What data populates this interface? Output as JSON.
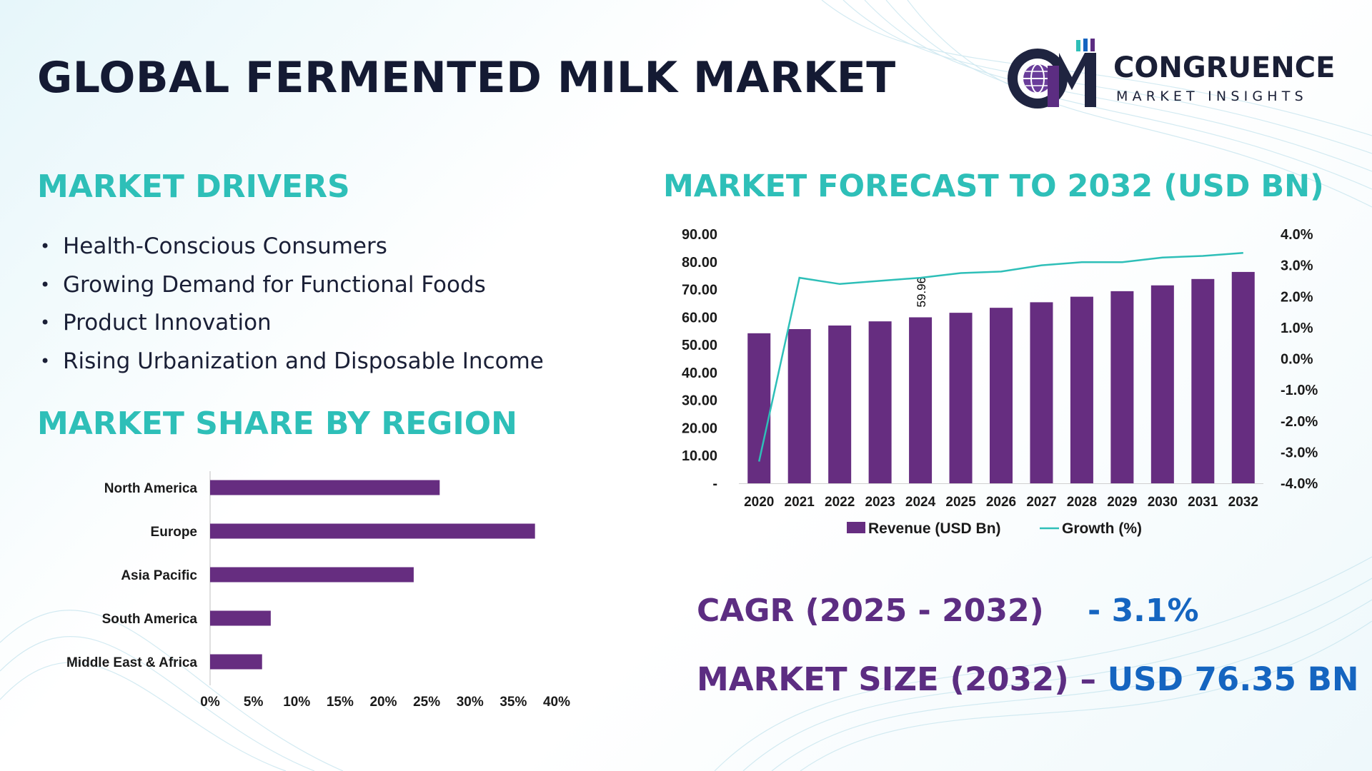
{
  "title": "GLOBAL FERMENTED MILK MARKET",
  "logo": {
    "name": "CONGRUENCE",
    "tagline": "MARKET INSIGHTS",
    "icon": "cm-globe-chart-logo"
  },
  "colors": {
    "bar": "#662d80",
    "line": "#2ebfb8",
    "heading": "#2ebfb8",
    "title": "#141a33",
    "stat_label": "#5c2d82",
    "stat_value": "#1565c0"
  },
  "drivers": {
    "heading": "MARKET DRIVERS",
    "items": [
      "Health-Conscious Consumers",
      "Growing Demand for Functional Foods",
      "Product Innovation",
      "Rising Urbanization and Disposable Income"
    ]
  },
  "region": {
    "heading": "MARKET SHARE BY REGION"
  },
  "forecast": {
    "heading": "MARKET FORECAST TO 2032 (USD BN)"
  },
  "stats": {
    "cagr_label": "CAGR (2025 - 2032)",
    "cagr_value": "- 3.1%",
    "size_label": "MARKET SIZE (2032) –",
    "size_value": "USD 76.35 BN"
  },
  "chart_data": [
    {
      "type": "bar",
      "orientation": "horizontal",
      "categories": [
        "North America",
        "Europe",
        "Asia Pacific",
        "South America",
        "Middle East & Africa"
      ],
      "values": [
        26.5,
        37.5,
        23.5,
        7.0,
        6.0
      ],
      "xlim": [
        0,
        40
      ],
      "ticks": [
        0,
        5,
        10,
        15,
        20,
        25,
        30,
        35,
        40
      ],
      "tick_labels": [
        "0%",
        "5%",
        "10%",
        "15%",
        "20%",
        "25%",
        "30%",
        "35%",
        "40%"
      ],
      "grid": false
    },
    {
      "type": "bar",
      "categories": [
        "2020",
        "2021",
        "2022",
        "2023",
        "2024",
        "2025",
        "2026",
        "2027",
        "2028",
        "2029",
        "2030",
        "2031",
        "2032"
      ],
      "series": [
        {
          "name": "Revenue (USD Bn)",
          "kind": "bar",
          "axis": "left",
          "values": [
            54.2,
            55.7,
            57.0,
            58.5,
            59.96,
            61.6,
            63.4,
            65.4,
            67.4,
            69.4,
            71.5,
            73.8,
            76.35
          ]
        },
        {
          "name": "Growth (%)",
          "kind": "line",
          "axis": "right",
          "values": [
            -3.3,
            2.6,
            2.4,
            2.5,
            2.6,
            2.75,
            2.8,
            3.0,
            3.1,
            3.1,
            3.25,
            3.3,
            3.4
          ]
        }
      ],
      "data_labels": [
        {
          "index": 4,
          "text": "59.96"
        }
      ],
      "ylim_left": [
        0,
        90
      ],
      "left_ticks": [
        0,
        10,
        20,
        30,
        40,
        50,
        60,
        70,
        80,
        90
      ],
      "left_tick_labels": [
        "-",
        "10.00",
        "20.00",
        "30.00",
        "40.00",
        "50.00",
        "60.00",
        "70.00",
        "80.00",
        "90.00"
      ],
      "ylim_right": [
        -4,
        4
      ],
      "right_ticks": [
        -4,
        -3,
        -2,
        -1,
        0,
        1,
        2,
        3,
        4
      ],
      "right_tick_labels": [
        "-4.0%",
        "-3.0%",
        "-2.0%",
        "-1.0%",
        "0.0%",
        "1.0%",
        "2.0%",
        "3.0%",
        "4.0%"
      ],
      "legend": "bottom",
      "grid": false
    }
  ]
}
